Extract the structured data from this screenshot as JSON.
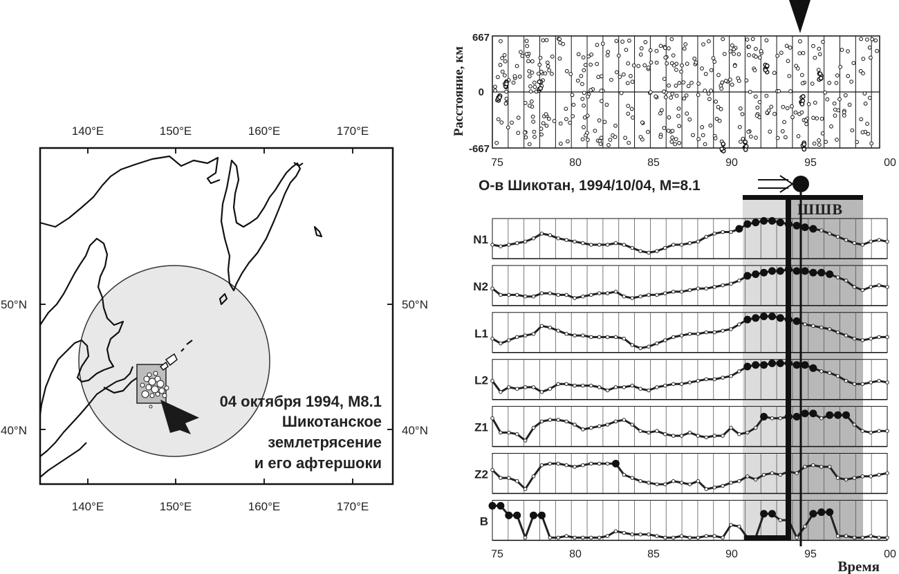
{
  "map": {
    "lon_labels": [
      "140°E",
      "150°E",
      "160°E",
      "170°E"
    ],
    "lat_labels": [
      "50°N",
      "40°N"
    ],
    "annotation_lines": [
      "04 октября 1994, M8.1",
      "Шикотанское",
      "землетрясение",
      "и его афтершоки"
    ]
  },
  "scatter_panel": {
    "ylabel": "Расстояние, км",
    "yticks": [
      "667",
      "0",
      "-667"
    ],
    "xticks": [
      "75",
      "80",
      "85",
      "90",
      "95",
      "00"
    ]
  },
  "event_label": "О-в Шикотан, 1994/10/04, M=8.1",
  "shaded_label": "ШШВ",
  "series_panel": {
    "xlabel": "Время",
    "xticks": [
      "75",
      "80",
      "85",
      "90",
      "95",
      "00"
    ],
    "rows": [
      "N1",
      "N2",
      "L1",
      "L2",
      "Z1",
      "Z2",
      "B"
    ]
  },
  "chart_data": {
    "type": "line",
    "x_range": [
      1975,
      2000
    ],
    "event_time": 1994.76,
    "shaded_interval": [
      1990.6,
      1998.2
    ],
    "series": [
      {
        "name": "N1",
        "values": [
          0.35,
          0.3,
          0.35,
          0.4,
          0.45,
          0.55,
          0.7,
          0.65,
          0.55,
          0.5,
          0.45,
          0.4,
          0.35,
          0.35,
          0.35,
          0.4,
          0.35,
          0.25,
          0.15,
          0.1,
          0.15,
          0.25,
          0.35,
          0.35,
          0.4,
          0.45,
          0.6,
          0.7,
          0.75,
          0.75,
          0.85,
          1.0,
          1.05,
          1.1,
          1.1,
          1.05,
          1.0,
          0.95,
          0.9,
          0.85,
          0.8,
          0.7,
          0.6,
          0.5,
          0.4,
          0.35,
          0.45,
          0.5,
          0.45
        ]
      },
      {
        "name": "N2",
        "values": [
          0.45,
          0.25,
          0.25,
          0.25,
          0.2,
          0.2,
          0.3,
          0.3,
          0.25,
          0.25,
          0.15,
          0.2,
          0.25,
          0.3,
          0.3,
          0.35,
          0.2,
          0.15,
          0.2,
          0.25,
          0.25,
          0.3,
          0.35,
          0.35,
          0.4,
          0.45,
          0.45,
          0.5,
          0.55,
          0.6,
          0.7,
          0.85,
          0.9,
          0.95,
          1.0,
          1.0,
          1.05,
          1.0,
          1.0,
          0.95,
          0.95,
          0.9,
          0.8,
          0.7,
          0.5,
          0.4,
          0.5,
          0.55,
          0.5
        ]
      },
      {
        "name": "L1",
        "values": [
          0.35,
          0.2,
          0.3,
          0.4,
          0.45,
          0.5,
          0.75,
          0.7,
          0.6,
          0.5,
          0.45,
          0.45,
          0.4,
          0.4,
          0.4,
          0.4,
          0.35,
          0.15,
          0.05,
          0.1,
          0.2,
          0.3,
          0.4,
          0.45,
          0.5,
          0.5,
          0.55,
          0.55,
          0.6,
          0.65,
          0.8,
          0.95,
          1.0,
          1.05,
          1.05,
          1.0,
          0.95,
          0.9,
          0.8,
          0.75,
          0.7,
          0.65,
          0.55,
          0.45,
          0.35,
          0.3,
          0.35,
          0.4,
          0.4
        ]
      },
      {
        "name": "L2",
        "values": [
          0.5,
          0.15,
          0.3,
          0.25,
          0.3,
          0.3,
          0.15,
          0.25,
          0.4,
          0.4,
          0.35,
          0.35,
          0.35,
          0.3,
          0.2,
          0.3,
          0.3,
          0.35,
          0.25,
          0.2,
          0.3,
          0.35,
          0.4,
          0.4,
          0.45,
          0.5,
          0.55,
          0.55,
          0.6,
          0.65,
          0.8,
          0.95,
          1.0,
          1.0,
          1.05,
          1.05,
          1.05,
          1.0,
          1.0,
          0.9,
          0.8,
          0.75,
          0.65,
          0.5,
          0.4,
          0.4,
          0.45,
          0.5,
          0.45
        ]
      },
      {
        "name": "Z1",
        "values": [
          0.8,
          0.35,
          0.35,
          0.3,
          0.1,
          0.5,
          0.7,
          0.75,
          0.75,
          0.7,
          0.6,
          0.45,
          0.5,
          0.55,
          0.6,
          0.7,
          0.75,
          0.6,
          0.4,
          0.35,
          0.4,
          0.3,
          0.25,
          0.25,
          0.35,
          0.25,
          0.2,
          0.25,
          0.25,
          0.5,
          0.3,
          0.35,
          0.5,
          0.85,
          0.8,
          0.8,
          0.85,
          0.85,
          0.95,
          0.95,
          0.8,
          0.9,
          0.9,
          0.9,
          0.6,
          0.4,
          0.35,
          0.4,
          0.4
        ]
      },
      {
        "name": "Z2",
        "values": [
          0.65,
          0.4,
          0.4,
          0.3,
          0.05,
          0.45,
          0.8,
          0.85,
          0.85,
          0.8,
          0.75,
          0.8,
          0.85,
          0.85,
          0.85,
          0.85,
          0.5,
          0.4,
          0.3,
          0.25,
          0.2,
          0.2,
          0.3,
          0.25,
          0.2,
          0.3,
          0.05,
          0.1,
          0.15,
          0.25,
          0.3,
          0.45,
          0.35,
          0.5,
          0.55,
          0.5,
          0.6,
          0.55,
          0.75,
          0.8,
          0.75,
          0.75,
          0.4,
          0.35,
          0.4,
          0.45,
          0.45,
          0.5,
          0.55
        ]
      },
      {
        "name": "B",
        "values": [
          1.0,
          1.0,
          0.7,
          0.7,
          0.0,
          0.7,
          0.7,
          0.0,
          0.0,
          0.05,
          0.0,
          0.0,
          0.0,
          0.0,
          0.05,
          0.2,
          0.15,
          0.1,
          0.1,
          0.1,
          0.05,
          0.0,
          0.0,
          0.05,
          0.0,
          0.0,
          0.05,
          0.05,
          0.0,
          0.4,
          0.35,
          0.0,
          0.0,
          0.75,
          0.75,
          0.55,
          0.55,
          0.0,
          0.35,
          0.75,
          0.8,
          0.8,
          0.05,
          0.05,
          0.0,
          0.0,
          0.05,
          0.0,
          0.0
        ]
      }
    ]
  }
}
